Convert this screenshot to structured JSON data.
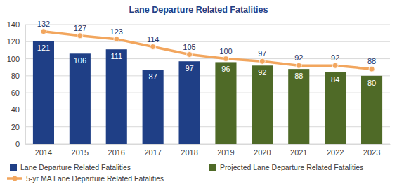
{
  "chart_data": {
    "type": "bar",
    "title": "Lane Departure Related Fatalities",
    "categories": [
      "2014",
      "2015",
      "2016",
      "2017",
      "2018",
      "2019",
      "2020",
      "2021",
      "2022",
      "2023"
    ],
    "series": [
      {
        "name": "Lane Departure Related Fatalities",
        "type": "bar",
        "color": "#1f3f86",
        "values": [
          121,
          106,
          111,
          87,
          97,
          null,
          null,
          null,
          null,
          null
        ]
      },
      {
        "name": "Projected Lane Departure Related Fatalities",
        "type": "bar",
        "color": "#4f6a27",
        "values": [
          null,
          null,
          null,
          null,
          null,
          96,
          92,
          88,
          84,
          80
        ]
      },
      {
        "name": "5-yr MA Lane Departure Related Fatalities",
        "type": "line",
        "color": "#f2a65e",
        "marker": "circle",
        "values": [
          132,
          127,
          123,
          114,
          105,
          100,
          97,
          92,
          92,
          88
        ]
      }
    ],
    "ylim": [
      0,
      140
    ],
    "yticks": [
      0,
      20,
      40,
      60,
      80,
      100,
      120,
      140
    ],
    "grid": true,
    "data_labels": true,
    "legend": "bottom"
  }
}
